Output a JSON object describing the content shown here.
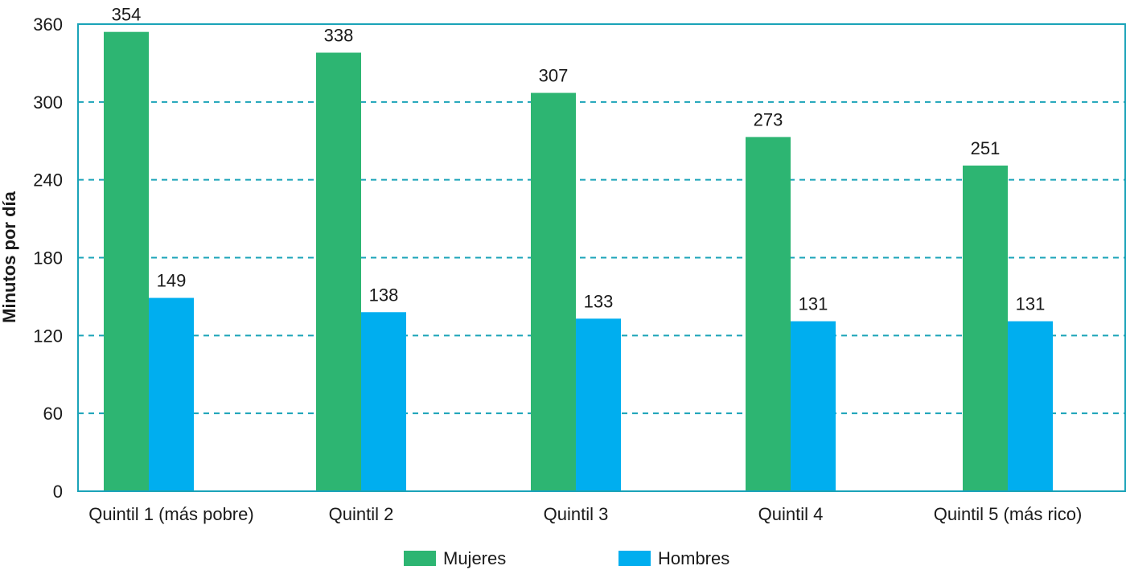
{
  "chart_data": {
    "type": "bar",
    "title": "",
    "xlabel": "",
    "ylabel": "Minutos por día",
    "categories": [
      "Quintil 1 (más pobre)",
      "Quintil 2",
      "Quintil 3",
      "Quintil 4",
      "Quintil 5 (más rico)"
    ],
    "series": [
      {
        "name": "Mujeres",
        "color": "#2db572",
        "values": [
          354,
          338,
          307,
          273,
          251
        ]
      },
      {
        "name": "Hombres",
        "color": "#00aeef",
        "values": [
          149,
          138,
          133,
          131,
          131
        ]
      }
    ],
    "ylim": [
      0,
      360
    ],
    "yticks": [
      0,
      60,
      120,
      180,
      240,
      300,
      360
    ],
    "grid": true,
    "grid_color": "#1aa3b8",
    "frame_color": "#1aa3b8",
    "legend_position": "bottom-center",
    "data_labels": true
  }
}
